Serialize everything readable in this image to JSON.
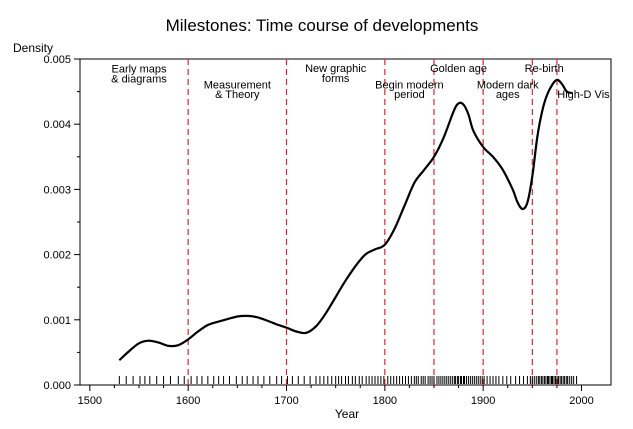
{
  "chart_data": {
    "type": "line",
    "title": "Milestones: Time course of developments",
    "xlabel": "Year",
    "ylabel": "Density",
    "xlim": [
      1490,
      2030
    ],
    "ylim": [
      0,
      0.005
    ],
    "x_ticks": [
      "1500",
      "1600",
      "1700",
      "1800",
      "1900",
      "2000"
    ],
    "y_ticks": [
      "0.000",
      "0.001",
      "0.002",
      "0.003",
      "0.004",
      "0.005"
    ],
    "grid": false,
    "legend": "none",
    "colors": {
      "density_line": "#000000",
      "period_line": "#e8212b",
      "rug": "#000000"
    },
    "period_boundaries": [
      1600,
      1700,
      1800,
      1850,
      1900,
      1950,
      1975
    ],
    "periods": [
      {
        "lines": [
          "Early maps",
          "& diagrams"
        ],
        "x": 1550,
        "y": [
          0.00479,
          0.00464
        ]
      },
      {
        "lines": [
          "Measurement",
          "& Theory"
        ],
        "x": 1650,
        "y": [
          0.00455,
          0.0044
        ]
      },
      {
        "lines": [
          "New graphic",
          "forms"
        ],
        "x": 1750,
        "y": [
          0.0048,
          0.00465
        ]
      },
      {
        "lines": [
          "Begin modern",
          "period"
        ],
        "x": 1825,
        "y": [
          0.00455,
          0.0044
        ]
      },
      {
        "lines": [
          "Golden age"
        ],
        "x": 1875,
        "y": [
          0.0048
        ]
      },
      {
        "lines": [
          "Modern dark",
          "ages"
        ],
        "x": 1925,
        "y": [
          0.00455,
          0.0044
        ]
      },
      {
        "lines": [
          "Re-birth"
        ],
        "x": 1962,
        "y": [
          0.0048
        ]
      },
      {
        "lines": [
          "High-D Vis"
        ],
        "x": 2002,
        "y": [
          0.0044
        ]
      }
    ],
    "series": [
      {
        "x": [
          1530,
          1540,
          1550,
          1560,
          1570,
          1580,
          1590,
          1600,
          1610,
          1620,
          1630,
          1640,
          1650,
          1660,
          1670,
          1680,
          1690,
          1700,
          1710,
          1720,
          1730,
          1740,
          1750,
          1760,
          1770,
          1780,
          1790,
          1800,
          1810,
          1820,
          1830,
          1840,
          1850,
          1860,
          1870,
          1875,
          1880,
          1885,
          1890,
          1900,
          1910,
          1920,
          1930,
          1935,
          1940,
          1945,
          1950,
          1955,
          1960,
          1965,
          1970,
          1975,
          1980,
          1985,
          1990
        ],
        "y": [
          0.00038,
          0.00052,
          0.00064,
          0.00068,
          0.00065,
          0.0006,
          0.00061,
          0.0007,
          0.00082,
          0.00092,
          0.00097,
          0.00101,
          0.00105,
          0.00106,
          0.00104,
          0.00099,
          0.00093,
          0.00088,
          0.00082,
          0.0008,
          0.0009,
          0.0011,
          0.00135,
          0.0016,
          0.00182,
          0.002,
          0.00208,
          0.00215,
          0.0024,
          0.00275,
          0.0031,
          0.0033,
          0.0035,
          0.0038,
          0.0042,
          0.00432,
          0.0043,
          0.00415,
          0.0039,
          0.00365,
          0.0035,
          0.0033,
          0.003,
          0.0028,
          0.0027,
          0.0028,
          0.0032,
          0.0038,
          0.0042,
          0.00445,
          0.0046,
          0.00468,
          0.00462,
          0.0045,
          0.00448
        ]
      }
    ],
    "rug": [
      1530,
      1537,
      1544,
      1551,
      1556,
      1561,
      1568,
      1575,
      1582,
      1590,
      1596,
      1603,
      1609,
      1614,
      1620,
      1626,
      1631,
      1636,
      1642,
      1649,
      1655,
      1660,
      1666,
      1671,
      1677,
      1683,
      1690,
      1695,
      1701,
      1706,
      1712,
      1718,
      1724,
      1730,
      1734,
      1738,
      1742,
      1746,
      1750,
      1753,
      1756,
      1760,
      1763,
      1767,
      1770,
      1774,
      1777,
      1781,
      1784,
      1787,
      1790,
      1793,
      1796,
      1799,
      1803,
      1806,
      1809,
      1812,
      1815,
      1818,
      1821,
      1824,
      1827,
      1830,
      1832,
      1834,
      1837,
      1839,
      1841,
      1844,
      1846,
      1848,
      1850,
      1853,
      1855,
      1857,
      1859,
      1861,
      1863,
      1865,
      1867,
      1869,
      1871,
      1872,
      1874,
      1875,
      1877,
      1878,
      1880,
      1881,
      1883,
      1885,
      1887,
      1889,
      1891,
      1893,
      1895,
      1897,
      1899,
      1901,
      1904,
      1907,
      1910,
      1913,
      1916,
      1920,
      1924,
      1928,
      1933,
      1937,
      1941,
      1945,
      1948,
      1950,
      1952,
      1954,
      1956,
      1957,
      1959,
      1960,
      1962,
      1963,
      1965,
      1966,
      1967,
      1969,
      1970,
      1971,
      1973,
      1974,
      1976,
      1977,
      1979,
      1980,
      1982,
      1983,
      1985,
      1986,
      1988,
      1990,
      1992,
      1995
    ]
  }
}
